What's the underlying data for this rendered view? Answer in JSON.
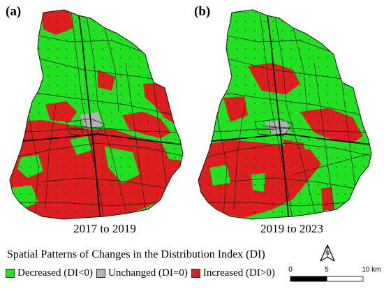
{
  "panels": [
    {
      "letter": "(a)",
      "period": "2017 to 2019"
    },
    {
      "letter": "(b)",
      "period": "2019 to 2023"
    }
  ],
  "legend": {
    "title": "Spatial Patterns of Changes in the Distribution Index (DI)",
    "items": [
      {
        "label": "Decreased (DI<0)",
        "color": "#22e022"
      },
      {
        "label": "Unchanged (DI=0)",
        "color": "#b3b3b3"
      },
      {
        "label": "Increased (DI>0)",
        "color": "#dd1e1e"
      }
    ]
  },
  "north_arrow": {
    "label": "N"
  },
  "scale_bar": {
    "ticks": [
      "0",
      "5",
      "10 km"
    ]
  }
}
